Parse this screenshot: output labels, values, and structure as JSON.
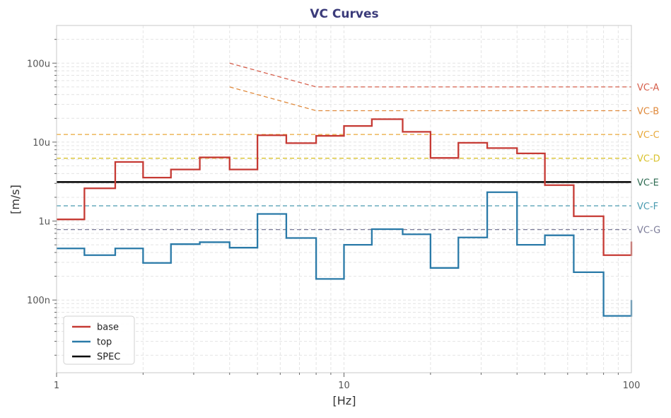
{
  "chart_data": {
    "type": "line",
    "title": "VC Curves",
    "xlabel": "[Hz]",
    "ylabel": "[m/s]",
    "x_scale": "log",
    "y_scale": "log",
    "xlim": [
      1,
      100
    ],
    "ylim": [
      1.2e-08,
      0.0003
    ],
    "grid": true,
    "legend_position": "lower-left",
    "x_ticks": [
      {
        "value": 1,
        "label": "1"
      },
      {
        "value": 10,
        "label": "10"
      },
      {
        "value": 100,
        "label": "100"
      }
    ],
    "y_ticks": [
      {
        "value": 1e-07,
        "label": "100n"
      },
      {
        "value": 1e-06,
        "label": "1u"
      },
      {
        "value": 1e-05,
        "label": "10u"
      },
      {
        "value": 0.0001,
        "label": "100u"
      }
    ],
    "vc_curves": [
      {
        "name": "VC-A",
        "color": "#d6604d",
        "points": [
          [
            4,
            0.0001
          ],
          [
            8,
            5e-05
          ],
          [
            100,
            5e-05
          ]
        ]
      },
      {
        "name": "VC-B",
        "color": "#e08a3c",
        "points": [
          [
            4,
            5e-05
          ],
          [
            8,
            2.5e-05
          ],
          [
            100,
            2.5e-05
          ]
        ]
      },
      {
        "name": "VC-C",
        "color": "#e8a93a",
        "points": [
          [
            1,
            1.25e-05
          ],
          [
            100,
            1.25e-05
          ]
        ]
      },
      {
        "name": "VC-D",
        "color": "#d9c22e",
        "points": [
          [
            1,
            6.25e-06
          ],
          [
            100,
            6.25e-06
          ]
        ]
      },
      {
        "name": "VC-E",
        "color": "#2e6b52",
        "points": [
          [
            1,
            3.12e-06
          ],
          [
            100,
            3.12e-06
          ]
        ]
      },
      {
        "name": "VC-F",
        "color": "#4a9bb0",
        "points": [
          [
            1,
            1.56e-06
          ],
          [
            100,
            1.56e-06
          ]
        ]
      },
      {
        "name": "VC-G",
        "color": "#7d7d9a",
        "points": [
          [
            1,
            7.8e-07
          ],
          [
            100,
            7.8e-07
          ]
        ]
      }
    ],
    "spec": {
      "name": "SPEC",
      "color": "#000000",
      "value": 3.12e-06
    },
    "band_edges": [
      1,
      1.25,
      1.6,
      2,
      2.5,
      3.15,
      4,
      5,
      6.3,
      8,
      10,
      12.5,
      16,
      20,
      25,
      31.5,
      40,
      50,
      63,
      80,
      100
    ],
    "series": [
      {
        "name": "base",
        "color": "#c63a34",
        "values": [
          1.05e-06,
          2.6e-06,
          5.6e-06,
          3.55e-06,
          4.5e-06,
          6.4e-06,
          4.5e-06,
          1.22e-05,
          9.7e-06,
          1.2e-05,
          1.6e-05,
          1.95e-05,
          1.35e-05,
          6.3e-06,
          9.8e-06,
          8.4e-06,
          7.2e-06,
          2.85e-06,
          1.15e-06,
          3.7e-07
        ],
        "end_value": 5.5e-07
      },
      {
        "name": "top",
        "color": "#2a7aa8",
        "values": [
          4.5e-07,
          3.7e-07,
          4.5e-07,
          2.95e-07,
          5.1e-07,
          5.4e-07,
          4.6e-07,
          1.23e-06,
          6.1e-07,
          1.85e-07,
          5e-07,
          7.9e-07,
          6.8e-07,
          2.55e-07,
          6.2e-07,
          2.32e-06,
          5e-07,
          6.6e-07,
          2.25e-07,
          6.3e-08
        ],
        "end_value": 1e-07
      }
    ],
    "legend": [
      {
        "label": "base",
        "color": "#c63a34"
      },
      {
        "label": "top",
        "color": "#2a7aa8"
      },
      {
        "label": "SPEC",
        "color": "#000000"
      }
    ],
    "colors": {
      "title": "#3b3b7a",
      "axis_text": "#555555",
      "label_text": "#333333",
      "grid": "#e4e4e4",
      "frame": "#c8c8c8"
    }
  }
}
